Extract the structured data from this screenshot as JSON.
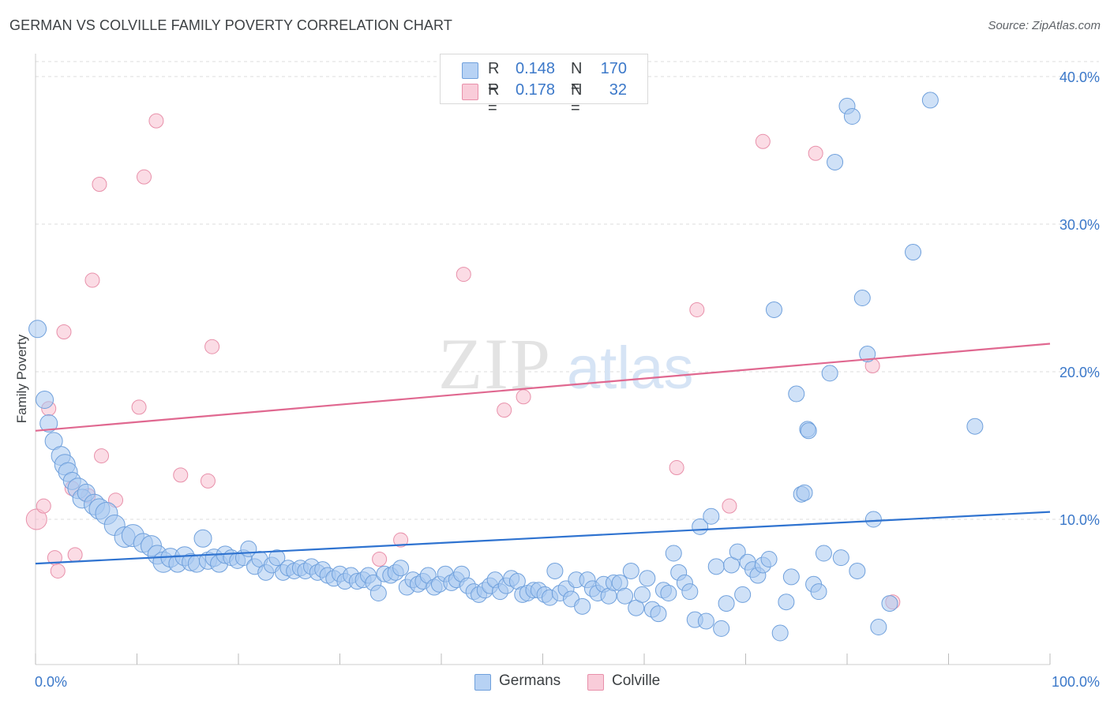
{
  "title": "GERMAN VS COLVILLE FAMILY POVERTY CORRELATION CHART",
  "source": "Source: ZipAtlas.com",
  "colors": {
    "german_fill": "#a8c8f0",
    "german_stroke": "#6fa0dc",
    "german_line": "#2f73d0",
    "colville_fill": "#f7bfd0",
    "colville_stroke": "#e890aa",
    "colville_line": "#e06890",
    "value_text": "#3b78c9",
    "grid": "#dddddd"
  },
  "legend_top": {
    "rows": [
      {
        "r_label": "R =",
        "r_value": "0.148",
        "n_label": "N =",
        "n_value": "170"
      },
      {
        "r_label": "R =",
        "r_value": "0.178",
        "n_label": "N =",
        "n_value": "32"
      }
    ]
  },
  "legend_bottom": {
    "germans": "Germans",
    "colville": "Colville"
  },
  "chart_data": {
    "type": "scatter",
    "xlabel": "",
    "ylabel": "Family Poverty",
    "xlim": [
      0,
      100
    ],
    "ylim": [
      0,
      40
    ],
    "x_tick_labels": [
      "0.0%",
      "100.0%"
    ],
    "y_ticks": [
      10,
      20,
      30,
      40
    ],
    "y_tick_labels": [
      "10.0%",
      "20.0%",
      "30.0%",
      "40.0%"
    ],
    "grid": true,
    "legend_position": "top-center",
    "watermark": "ZIPatlas",
    "series": [
      {
        "name": "Germans",
        "trend": {
          "x0": 0,
          "y0": 7.0,
          "x1": 100,
          "y1": 10.5
        },
        "points": [
          [
            0.2,
            22.9,
            11
          ],
          [
            0.9,
            18.1,
            11
          ],
          [
            1.3,
            16.5,
            11
          ],
          [
            1.8,
            15.3,
            11
          ],
          [
            2.5,
            14.3,
            12
          ],
          [
            2.9,
            13.7,
            13
          ],
          [
            3.2,
            13.2,
            12
          ],
          [
            3.6,
            12.6,
            11
          ],
          [
            4.2,
            12.1,
            13
          ],
          [
            4.6,
            11.4,
            12
          ],
          [
            5.0,
            11.8,
            11
          ],
          [
            5.8,
            11.0,
            13
          ],
          [
            6.3,
            10.7,
            13
          ],
          [
            7.0,
            10.4,
            14
          ],
          [
            7.8,
            9.6,
            13
          ],
          [
            8.8,
            8.8,
            13
          ],
          [
            9.6,
            8.9,
            14
          ],
          [
            10.6,
            8.4,
            12
          ],
          [
            11.4,
            8.2,
            13
          ],
          [
            12.0,
            7.6,
            12
          ],
          [
            12.6,
            7.1,
            13
          ],
          [
            13.3,
            7.4,
            12
          ],
          [
            14.0,
            7.0,
            11
          ],
          [
            14.7,
            7.5,
            12
          ],
          [
            15.3,
            7.1,
            11
          ],
          [
            15.9,
            7.0,
            11
          ],
          [
            16.5,
            8.7,
            11
          ],
          [
            17.0,
            7.2,
            11
          ],
          [
            17.6,
            7.4,
            11
          ],
          [
            18.1,
            7.0,
            11
          ],
          [
            18.7,
            7.6,
            11
          ],
          [
            19.3,
            7.4,
            10
          ],
          [
            19.9,
            7.2,
            10
          ],
          [
            20.5,
            7.4,
            10
          ],
          [
            21.0,
            8.0,
            10
          ],
          [
            21.6,
            6.8,
            10
          ],
          [
            22.1,
            7.3,
            10
          ],
          [
            22.7,
            6.4,
            10
          ],
          [
            23.3,
            6.9,
            10
          ],
          [
            23.8,
            7.4,
            10
          ],
          [
            24.4,
            6.4,
            10
          ],
          [
            24.9,
            6.7,
            10
          ],
          [
            25.5,
            6.5,
            10
          ],
          [
            26.1,
            6.7,
            10
          ],
          [
            26.6,
            6.5,
            10
          ],
          [
            27.2,
            6.8,
            10
          ],
          [
            27.8,
            6.4,
            10
          ],
          [
            28.3,
            6.6,
            10
          ],
          [
            28.8,
            6.2,
            10
          ],
          [
            29.4,
            6.0,
            10
          ],
          [
            30.0,
            6.3,
            10
          ],
          [
            30.5,
            5.8,
            10
          ],
          [
            31.1,
            6.2,
            10
          ],
          [
            31.7,
            5.8,
            10
          ],
          [
            32.3,
            5.9,
            10
          ],
          [
            32.8,
            6.2,
            10
          ],
          [
            33.3,
            5.7,
            10
          ],
          [
            33.8,
            5.0,
            10
          ],
          [
            34.4,
            6.3,
            10
          ],
          [
            35.0,
            6.2,
            10
          ],
          [
            35.5,
            6.4,
            10
          ],
          [
            36.0,
            6.7,
            10
          ],
          [
            36.6,
            5.4,
            10
          ],
          [
            37.2,
            5.9,
            10
          ],
          [
            37.7,
            5.6,
            10
          ],
          [
            38.2,
            5.8,
            10
          ],
          [
            38.7,
            6.2,
            10
          ],
          [
            39.3,
            5.4,
            10
          ],
          [
            39.8,
            5.6,
            10
          ],
          [
            40.4,
            6.3,
            10
          ],
          [
            41.0,
            5.7,
            10
          ],
          [
            41.5,
            5.9,
            10
          ],
          [
            42.0,
            6.3,
            10
          ],
          [
            42.6,
            5.5,
            10
          ],
          [
            43.2,
            5.1,
            10
          ],
          [
            43.7,
            4.9,
            10
          ],
          [
            44.3,
            5.2,
            10
          ],
          [
            44.8,
            5.5,
            10
          ],
          [
            45.3,
            5.9,
            10
          ],
          [
            45.8,
            5.1,
            10
          ],
          [
            46.4,
            5.5,
            10
          ],
          [
            46.9,
            6.0,
            10
          ],
          [
            47.5,
            5.8,
            10
          ],
          [
            48.0,
            4.9,
            10
          ],
          [
            48.5,
            5.0,
            10
          ],
          [
            49.1,
            5.2,
            10
          ],
          [
            49.6,
            5.2,
            10
          ],
          [
            50.2,
            4.9,
            10
          ],
          [
            50.7,
            4.7,
            10
          ],
          [
            51.2,
            6.5,
            10
          ],
          [
            51.7,
            5.0,
            10
          ],
          [
            52.3,
            5.3,
            10
          ],
          [
            52.8,
            4.6,
            10
          ],
          [
            53.3,
            5.9,
            10
          ],
          [
            53.9,
            4.1,
            10
          ],
          [
            54.4,
            5.9,
            10
          ],
          [
            54.9,
            5.3,
            10
          ],
          [
            55.4,
            5.0,
            10
          ],
          [
            56.0,
            5.6,
            10
          ],
          [
            56.5,
            4.8,
            10
          ],
          [
            57.0,
            5.7,
            10
          ],
          [
            57.6,
            5.7,
            10
          ],
          [
            58.1,
            4.8,
            10
          ],
          [
            58.7,
            6.5,
            10
          ],
          [
            59.2,
            4.0,
            10
          ],
          [
            59.8,
            4.9,
            10
          ],
          [
            60.3,
            6.0,
            10
          ],
          [
            60.8,
            3.9,
            10
          ],
          [
            61.4,
            3.6,
            10
          ],
          [
            61.9,
            5.2,
            10
          ],
          [
            62.4,
            5.0,
            10
          ],
          [
            62.9,
            7.7,
            10
          ],
          [
            63.4,
            6.4,
            10
          ],
          [
            64.0,
            5.7,
            10
          ],
          [
            64.5,
            5.1,
            10
          ],
          [
            65.0,
            3.2,
            10
          ],
          [
            65.5,
            9.5,
            10
          ],
          [
            66.1,
            3.1,
            10
          ],
          [
            66.6,
            10.2,
            10
          ],
          [
            67.1,
            6.8,
            10
          ],
          [
            67.6,
            2.6,
            10
          ],
          [
            68.1,
            4.3,
            10
          ],
          [
            68.6,
            6.9,
            10
          ],
          [
            69.2,
            7.8,
            10
          ],
          [
            69.7,
            4.9,
            10
          ],
          [
            70.2,
            7.1,
            10
          ],
          [
            70.7,
            6.6,
            10
          ],
          [
            71.2,
            6.2,
            10
          ],
          [
            71.7,
            6.9,
            10
          ],
          [
            72.3,
            7.3,
            10
          ],
          [
            72.8,
            24.2,
            10
          ],
          [
            73.4,
            2.3,
            10
          ],
          [
            74.0,
            4.4,
            10
          ],
          [
            74.5,
            6.1,
            10
          ],
          [
            75.0,
            18.5,
            10
          ],
          [
            75.5,
            11.7,
            10
          ],
          [
            76.1,
            16.1,
            10
          ],
          [
            76.7,
            5.6,
            10
          ],
          [
            77.2,
            5.1,
            10
          ],
          [
            77.7,
            7.7,
            10
          ],
          [
            78.3,
            19.9,
            10
          ],
          [
            78.8,
            34.2,
            10
          ],
          [
            79.4,
            7.4,
            10
          ],
          [
            80.0,
            38.0,
            10
          ],
          [
            80.5,
            37.3,
            10
          ],
          [
            81.0,
            6.5,
            10
          ],
          [
            81.5,
            25.0,
            10
          ],
          [
            82.0,
            21.2,
            10
          ],
          [
            82.6,
            10.0,
            10
          ],
          [
            83.1,
            2.7,
            10
          ],
          [
            84.2,
            4.3,
            10
          ],
          [
            88.2,
            38.4,
            10
          ],
          [
            86.5,
            28.1,
            10
          ],
          [
            92.6,
            16.3,
            10
          ],
          [
            76.2,
            16.0,
            10
          ],
          [
            75.8,
            11.8,
            10
          ]
        ]
      },
      {
        "name": "Colville",
        "trend": {
          "x0": 0,
          "y0": 16.0,
          "x1": 100,
          "y1": 21.9
        },
        "points": [
          [
            0.1,
            10.0,
            13
          ],
          [
            0.8,
            10.9,
            9
          ],
          [
            1.3,
            17.5,
            9
          ],
          [
            1.9,
            7.4,
            9
          ],
          [
            2.2,
            6.5,
            9
          ],
          [
            2.8,
            22.7,
            9
          ],
          [
            3.6,
            12.1,
            9
          ],
          [
            3.9,
            7.6,
            9
          ],
          [
            5.2,
            11.6,
            9
          ],
          [
            5.6,
            26.2,
            9
          ],
          [
            6.3,
            32.7,
            9
          ],
          [
            6.5,
            14.3,
            9
          ],
          [
            7.9,
            11.3,
            9
          ],
          [
            10.2,
            17.6,
            9
          ],
          [
            10.7,
            33.2,
            9
          ],
          [
            11.9,
            37.0,
            9
          ],
          [
            14.3,
            13.0,
            9
          ],
          [
            17.0,
            12.6,
            9
          ],
          [
            17.4,
            21.7,
            9
          ],
          [
            33.9,
            7.3,
            9
          ],
          [
            36.0,
            8.6,
            9
          ],
          [
            42.2,
            26.6,
            9
          ],
          [
            46.2,
            17.4,
            9
          ],
          [
            48.1,
            18.3,
            9
          ],
          [
            63.2,
            13.5,
            9
          ],
          [
            65.2,
            24.2,
            9
          ],
          [
            68.4,
            10.9,
            9
          ],
          [
            71.7,
            35.6,
            9
          ],
          [
            76.9,
            34.8,
            9
          ],
          [
            82.5,
            20.4,
            9
          ],
          [
            84.5,
            4.4,
            9
          ]
        ]
      }
    ]
  }
}
